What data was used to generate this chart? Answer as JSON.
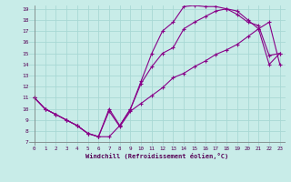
{
  "xlabel": "Windchill (Refroidissement éolien,°C)",
  "bg_color": "#c8ece8",
  "grid_color": "#a8d8d4",
  "line_color": "#880088",
  "xmin": 0,
  "xmax": 23,
  "ymin": 7,
  "ymax": 19,
  "yticks": [
    7,
    8,
    9,
    10,
    11,
    12,
    13,
    14,
    15,
    16,
    17,
    18,
    19
  ],
  "xticks": [
    0,
    1,
    2,
    3,
    4,
    5,
    6,
    7,
    8,
    9,
    10,
    11,
    12,
    13,
    14,
    15,
    16,
    17,
    18,
    19,
    20,
    21,
    22,
    23
  ],
  "line1_x": [
    0,
    1,
    2,
    3,
    4,
    5,
    6,
    7,
    8,
    9,
    10,
    11,
    12,
    13,
    14,
    15,
    16,
    17,
    18,
    19,
    20,
    21,
    22,
    23
  ],
  "line1_y": [
    11,
    10,
    9.5,
    9,
    8.5,
    7.8,
    7.5,
    7.5,
    8.5,
    10,
    12.5,
    15,
    17.0,
    17.8,
    19.2,
    19.3,
    19.2,
    19.2,
    19.0,
    18.5,
    17.8,
    17.5,
    14.8,
    15.0
  ],
  "line2_x": [
    0,
    1,
    2,
    3,
    4,
    5,
    6,
    7,
    8,
    9,
    10,
    11,
    12,
    13,
    14,
    15,
    16,
    17,
    18,
    19,
    20,
    21,
    22,
    23
  ],
  "line2_y": [
    11,
    10,
    9.5,
    9,
    8.5,
    7.8,
    7.5,
    10.0,
    8.5,
    10,
    12.3,
    13.8,
    15.0,
    15.5,
    17.2,
    17.8,
    18.3,
    18.8,
    19.0,
    18.8,
    18.0,
    17.2,
    14.0,
    15.0
  ],
  "line3_x": [
    0,
    1,
    2,
    3,
    4,
    5,
    6,
    7,
    8,
    9,
    10,
    11,
    12,
    13,
    14,
    15,
    16,
    17,
    18,
    19,
    20,
    21,
    22,
    23
  ],
  "line3_y": [
    11,
    10,
    9.5,
    9,
    8.5,
    7.8,
    7.5,
    9.8,
    8.4,
    9.8,
    10.5,
    11.2,
    11.9,
    12.8,
    13.2,
    13.8,
    14.3,
    14.9,
    15.3,
    15.8,
    16.5,
    17.2,
    17.8,
    14.0
  ]
}
